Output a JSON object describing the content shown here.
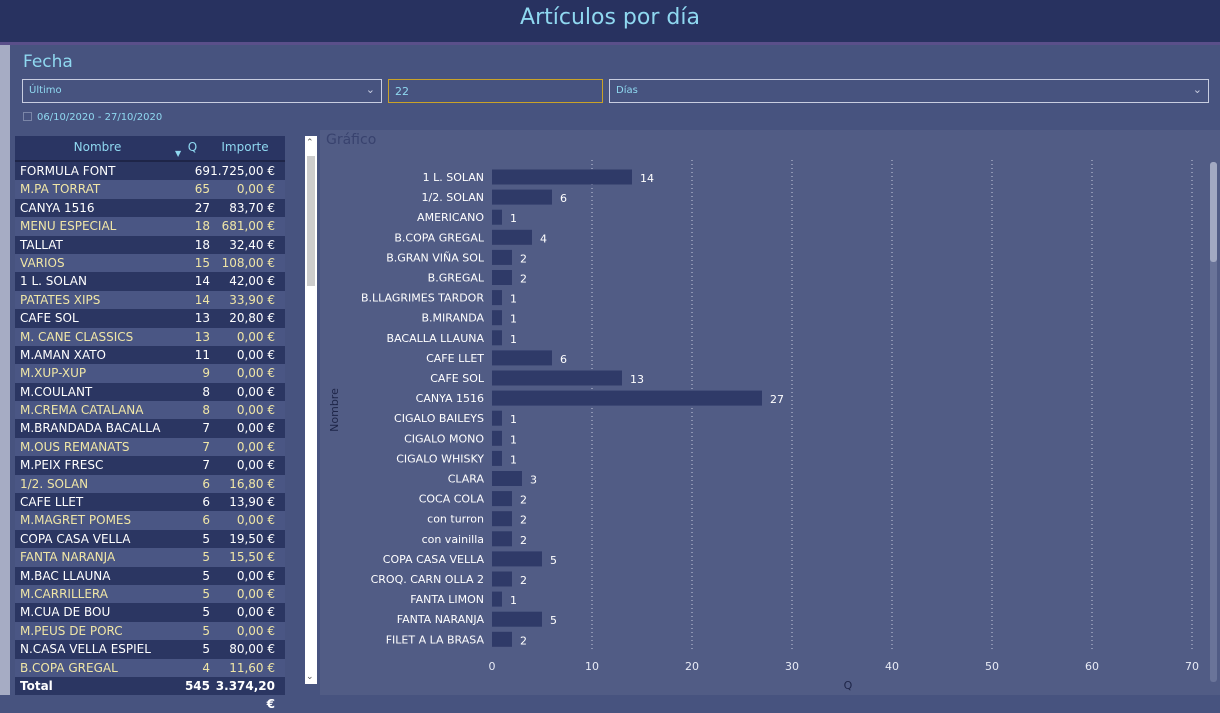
{
  "title": "Artículos por día",
  "filter": {
    "label": "Fecha",
    "mode": "Último",
    "value": "22",
    "unit": "Días",
    "range": "06/10/2020 - 27/10/2020"
  },
  "table": {
    "headers": [
      "Nombre",
      "Q",
      "Importe"
    ],
    "rows": [
      [
        "FORMULA FONT",
        "69",
        "1.725,00 €"
      ],
      [
        "M.PA TORRAT",
        "65",
        "0,00 €"
      ],
      [
        "CANYA 1516",
        "27",
        "83,70 €"
      ],
      [
        "MENU ESPECIAL",
        "18",
        "681,00 €"
      ],
      [
        "TALLAT",
        "18",
        "32,40 €"
      ],
      [
        "VARIOS",
        "15",
        "108,00 €"
      ],
      [
        "1 L. SOLAN",
        "14",
        "42,00 €"
      ],
      [
        "PATATES XIPS",
        "14",
        "33,90 €"
      ],
      [
        "CAFE SOL",
        "13",
        "20,80 €"
      ],
      [
        "M. CANE CLASSICS",
        "13",
        "0,00 €"
      ],
      [
        "M.AMAN XATO",
        "11",
        "0,00 €"
      ],
      [
        "M.XUP-XUP",
        "9",
        "0,00 €"
      ],
      [
        "M.COULANT",
        "8",
        "0,00 €"
      ],
      [
        "M.CREMA CATALANA",
        "8",
        "0,00 €"
      ],
      [
        "M.BRANDADA BACALLA",
        "7",
        "0,00 €"
      ],
      [
        "M.OUS REMANATS",
        "7",
        "0,00 €"
      ],
      [
        "M.PEIX FRESC",
        "7",
        "0,00 €"
      ],
      [
        "1/2. SOLAN",
        "6",
        "16,80 €"
      ],
      [
        "CAFE LLET",
        "6",
        "13,90 €"
      ],
      [
        "M.MAGRET POMES",
        "6",
        "0,00 €"
      ],
      [
        "COPA CASA VELLA",
        "5",
        "19,50 €"
      ],
      [
        "FANTA NARANJA",
        "5",
        "15,50 €"
      ],
      [
        "M.BAC LLAUNA",
        "5",
        "0,00 €"
      ],
      [
        "M.CARRILLERA",
        "5",
        "0,00 €"
      ],
      [
        "M.CUA DE BOU",
        "5",
        "0,00 €"
      ],
      [
        "M.PEUS DE PORC",
        "5",
        "0,00 €"
      ],
      [
        "N.CASA VELLA ESPIEL",
        "5",
        "80,00 €"
      ],
      [
        "B.COPA GREGAL",
        "4",
        "11,60 €"
      ]
    ],
    "total": [
      "Total",
      "545",
      "3.374,20 €"
    ]
  },
  "chart_data": {
    "type": "bar",
    "orientation": "horizontal",
    "title": "Gráfico",
    "xlabel": "Q",
    "ylabel": "Nombre",
    "xlim": [
      0,
      70
    ],
    "xticks": [
      0,
      10,
      20,
      30,
      40,
      50,
      60,
      70
    ],
    "categories": [
      "1 L. SOLAN",
      "1/2. SOLAN",
      "AMERICANO",
      "B.COPA GREGAL",
      "B.GRAN VIÑA SOL",
      "B.GREGAL",
      "B.LLAGRIMES TARDOR",
      "B.MIRANDA",
      "BACALLA LLAUNA",
      "CAFE LLET",
      "CAFE SOL",
      "CANYA 1516",
      "CIGALO BAILEYS",
      "CIGALO MONO",
      "CIGALO WHISKY",
      "CLARA",
      "COCA COLA",
      "con turron",
      "con vainilla",
      "COPA CASA VELLA",
      "CROQ. CARN OLLA 2",
      "FANTA LIMON",
      "FANTA NARANJA",
      "FILET A LA BRASA"
    ],
    "values": [
      14,
      6,
      1,
      4,
      2,
      2,
      1,
      1,
      1,
      6,
      13,
      27,
      1,
      1,
      1,
      3,
      2,
      2,
      2,
      5,
      2,
      1,
      5,
      2
    ],
    "bar_color": "#2f3a68"
  }
}
